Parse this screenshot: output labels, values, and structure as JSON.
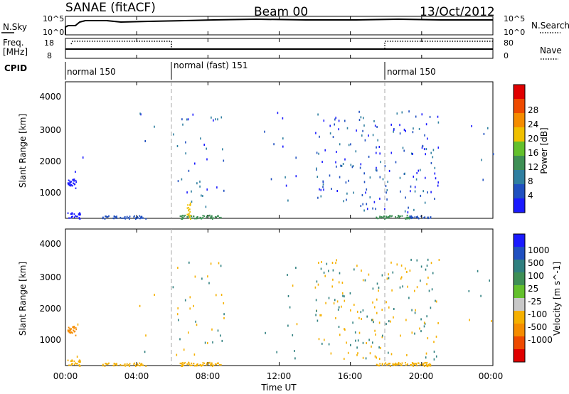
{
  "header": {
    "station": "SANAE (fitACF)",
    "beam": "Beam 00",
    "date": "13/Oct/2012"
  },
  "top_panels": {
    "nsky_label": "N.Sky",
    "nsky_ticks": [
      "10^5",
      "10^0"
    ],
    "nsearch_label": "N.Search",
    "nsearch_ticks": [
      "10^5",
      "10^0"
    ],
    "freq_label": "Freq.",
    "freq_unit": "[MHz]",
    "freq_ticks": [
      "18",
      "8"
    ],
    "nave_label": "Nave",
    "nave_ticks": [
      "80",
      "0"
    ],
    "cpid_label": "CPID",
    "cpid_modes": [
      {
        "name": "normal 150",
        "start": 0,
        "end": 6
      },
      {
        "name": "normal (fast) 151",
        "start": 6,
        "end": 18
      },
      {
        "name": "normal 150",
        "start": 18,
        "end": 24
      }
    ]
  },
  "x_axis": {
    "label": "Time UT",
    "ticks": [
      "00:00",
      "04:00",
      "08:00",
      "12:00",
      "16:00",
      "20:00",
      "00:00"
    ]
  },
  "colors": {
    "power": [
      "#1a1aff",
      "#2050c0",
      "#2f7fa0",
      "#3e8f55",
      "#63c02c",
      "#f0c000",
      "#f58c00",
      "#ee4a00",
      "#e00000"
    ],
    "velocity": [
      "#1a1aff",
      "#2050c0",
      "#2f7f7f",
      "#3e8f55",
      "#63c02c",
      "#c8c8c8",
      "#f5b000",
      "#f58c00",
      "#ee4a00",
      "#e00000"
    ]
  },
  "chart_data": [
    {
      "type": "heatmap",
      "title": "Power",
      "ylabel": "Slant Range [km]",
      "xlabel": "Time UT",
      "xlim": [
        0,
        24
      ],
      "ylim": [
        180,
        4500
      ],
      "yticks": [
        "1000",
        "2000",
        "3000",
        "4000"
      ],
      "colorbar": {
        "label": "Power [dB]",
        "ticks": [
          "4",
          "8",
          "12",
          "16",
          "20",
          "24",
          "28"
        ]
      },
      "regions": [
        {
          "t0": 0.1,
          "t1": 0.8,
          "r0": 180,
          "r1": 380,
          "power": 4
        },
        {
          "t0": 0.1,
          "t1": 0.6,
          "r0": 1150,
          "r1": 1450,
          "power": 4
        },
        {
          "t0": 2.0,
          "t1": 4.5,
          "r0": 180,
          "r1": 280,
          "power": 8
        },
        {
          "t0": 6.4,
          "t1": 8.8,
          "r0": 180,
          "r1": 300,
          "power": 16
        },
        {
          "t0": 6.8,
          "t1": 7.0,
          "r0": 180,
          "r1": 700,
          "power": 24
        },
        {
          "t0": 17.4,
          "t1": 19.3,
          "r0": 180,
          "r1": 300,
          "power": 16
        },
        {
          "t0": 19.3,
          "t1": 20.5,
          "r0": 180,
          "r1": 280,
          "power": 8
        }
      ]
    },
    {
      "type": "heatmap",
      "title": "Velocity",
      "ylabel": "Slant Range [km]",
      "xlabel": "Time UT",
      "xlim": [
        0,
        24
      ],
      "ylim": [
        180,
        4500
      ],
      "yticks": [
        "1000",
        "2000",
        "3000",
        "4000"
      ],
      "colorbar": {
        "label": "Velocity [m s^-1]",
        "ticks": [
          "1000",
          "500",
          "100",
          "25",
          "-25",
          "-100",
          "-500",
          "-1000"
        ]
      },
      "regions": [
        {
          "t0": 0.1,
          "t1": 0.8,
          "r0": 180,
          "r1": 380,
          "velocity": -300
        },
        {
          "t0": 0.1,
          "t1": 0.6,
          "r0": 1150,
          "r1": 1450,
          "velocity": -700
        },
        {
          "t0": 2.0,
          "t1": 4.5,
          "r0": 180,
          "r1": 280,
          "velocity": -300
        },
        {
          "t0": 6.4,
          "t1": 8.8,
          "r0": 180,
          "r1": 300,
          "velocity": -150
        },
        {
          "t0": 17.4,
          "t1": 20.5,
          "r0": 180,
          "r1": 300,
          "velocity": -200
        }
      ]
    }
  ]
}
